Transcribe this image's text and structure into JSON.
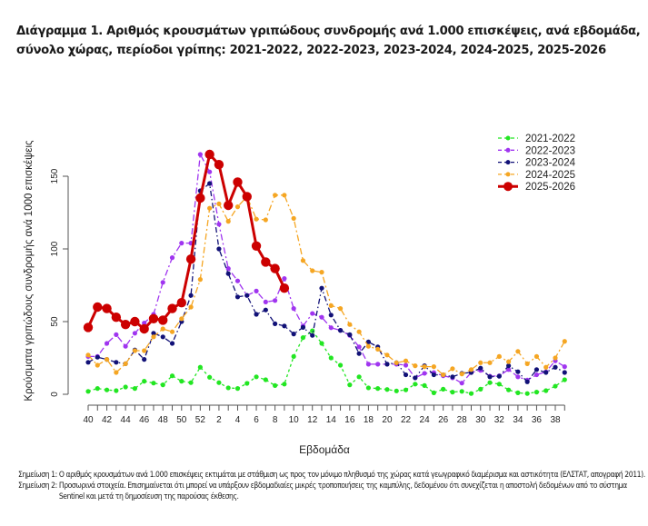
{
  "title_lines": [
    "Διάγραμμα 1. Αριθμός κρουσμάτων γριπώδους συνδρομής ανά 1.000 επισκέψεις, ανά εβδομάδα,",
    "σύνολο χώρας, περίοδοι γρίπης: 2021-2022, 2022-2023, 2023-2024, 2024-2025, 2025-2026"
  ],
  "notes": [
    {
      "label": "Σημείωση 1:",
      "text": "Ο αριθμός κρουσμάτων ανά 1.000 επισκέψεις εκτιμάται με στάθμιση ως προς τον μόνιμο πληθυσμό της χώρας κατά γεωγραφικό διαμέρισμα και αστικότητα (ΕΛΣΤΑΤ, απογραφή 2011)."
    },
    {
      "label": "Σημείωση 2:",
      "text": "Προσωρινά στοιχεία. Επισημαίνεται ότι μπορεί να υπάρξουν εβδομαδιαίες μικρές τροποποιήσεις της καμπύλης, δεδομένου ότι συνεχίζεται η αποστολή δεδομένων από το σύστημα Sentinel και μετά τη δημοσίευση της παρούσας έκθεσης."
    }
  ],
  "chart_data": {
    "type": "line",
    "title": "Διάγραμμα 1. Αριθμός κρουσμάτων γριπώδους συνδρομής ανά 1.000 επισκέψεις, ανά εβδομάδα, σύνολο χώρας, περίοδοι γρίπης: 2021-2022, 2022-2023, 2023-2024, 2024-2025, 2025-2026",
    "xlabel": "Εβδομάδα",
    "ylabel": "Κρούσματα γριπώδους συνδρομής ανά 1000 επισκέψεις",
    "ylim": [
      0,
      175
    ],
    "yticks": [
      0,
      50,
      100,
      150
    ],
    "grid": false,
    "legend_position": "top-right",
    "x": [
      40,
      41,
      42,
      43,
      44,
      45,
      46,
      47,
      48,
      49,
      50,
      51,
      52,
      1,
      2,
      3,
      4,
      5,
      6,
      7,
      8,
      9,
      10,
      11,
      12,
      13,
      14,
      15,
      16,
      17,
      18,
      19,
      20,
      21,
      22,
      23,
      24,
      25,
      26,
      27,
      28,
      29,
      30,
      31,
      32,
      33,
      34,
      35,
      36,
      37,
      38,
      39
    ],
    "xtick_labels": [
      "40",
      "42",
      "44",
      "46",
      "48",
      "50",
      "52",
      "2",
      "4",
      "6",
      "8",
      "10",
      "12",
      "14",
      "16",
      "18",
      "20",
      "22",
      "24",
      "26",
      "28",
      "30",
      "32",
      "34",
      "36",
      "38"
    ],
    "series": [
      {
        "name": "2021-2022",
        "color": "#22e622",
        "style": "dashed-small-markers",
        "values": [
          2,
          4,
          3,
          2.5,
          5,
          4,
          9,
          7.7,
          6.5,
          12.7,
          9,
          8,
          18.6,
          11.7,
          8,
          4.4,
          4,
          7.5,
          12,
          10,
          6,
          7,
          26,
          39,
          43.7,
          35,
          25,
          20,
          6.5,
          12,
          4.4,
          4,
          3.3,
          2.3,
          3,
          7,
          6,
          1,
          3.5,
          1.5,
          2,
          0.5,
          3.5,
          8,
          7,
          3,
          1,
          0.5,
          1.5,
          2.5,
          5.6,
          10
        ]
      },
      {
        "name": "2022-2023",
        "color": "#a035f0",
        "style": "dashed-small-markers",
        "values": [
          26,
          26,
          35,
          41,
          33,
          42,
          49,
          55,
          77,
          94,
          104,
          104,
          165,
          153,
          117,
          86.5,
          78,
          68,
          71,
          63.5,
          64.5,
          79.6,
          59,
          47,
          55.6,
          53,
          45.8,
          44,
          40.5,
          32.6,
          20.7,
          20.7,
          20.7,
          20.7,
          20,
          11.3,
          14.4,
          14.9,
          12.7,
          11.3,
          7.7,
          15,
          16.5,
          12.4,
          12.7,
          17,
          12,
          9.8,
          13.4,
          15.5,
          23,
          19
        ]
      },
      {
        "name": "2023-2024",
        "color": "#111177",
        "style": "dashed-small-markers",
        "values": [
          22,
          25.5,
          24,
          22,
          21,
          30.5,
          24,
          42,
          39.5,
          35,
          50,
          68,
          140,
          145,
          100,
          83,
          67,
          68,
          55,
          58,
          48.5,
          47,
          41.5,
          46,
          40.5,
          73,
          54.5,
          44,
          41,
          28,
          36,
          32.6,
          20.7,
          21.7,
          13.4,
          11.3,
          19.6,
          13.4,
          13.4,
          12,
          14.4,
          15,
          18,
          12,
          12.4,
          19.6,
          15.5,
          8.6,
          17,
          15,
          18.6,
          15
        ]
      },
      {
        "name": "2024-2025",
        "color": "#f5a623",
        "style": "dashed-small-markers",
        "values": [
          27,
          20,
          24,
          15,
          21,
          30,
          30,
          39.5,
          45,
          43,
          52,
          60,
          79,
          128,
          131,
          119,
          129,
          136,
          120.5,
          120,
          137,
          137,
          121,
          92,
          85,
          84,
          61,
          59,
          48,
          43,
          33,
          31,
          27,
          21.7,
          23,
          19.6,
          19,
          19,
          13.4,
          17.6,
          14,
          17,
          21.7,
          21.7,
          26,
          22.4,
          29.5,
          21,
          26,
          18.6,
          25,
          36.4
        ]
      },
      {
        "name": "2025-2026",
        "color": "#cc0000",
        "style": "solid-large-markers",
        "values": [
          46,
          60,
          59,
          53,
          48,
          50,
          45,
          52,
          51,
          59,
          63,
          93,
          135,
          165,
          158,
          130,
          146,
          136,
          102,
          91,
          86.5,
          73,
          null,
          null,
          null,
          null,
          null,
          null,
          null,
          null,
          null,
          null,
          null,
          null,
          null,
          null,
          null,
          null,
          null,
          null,
          null,
          null,
          null,
          null,
          null,
          null,
          null,
          null,
          null,
          null,
          null,
          null
        ]
      }
    ]
  }
}
